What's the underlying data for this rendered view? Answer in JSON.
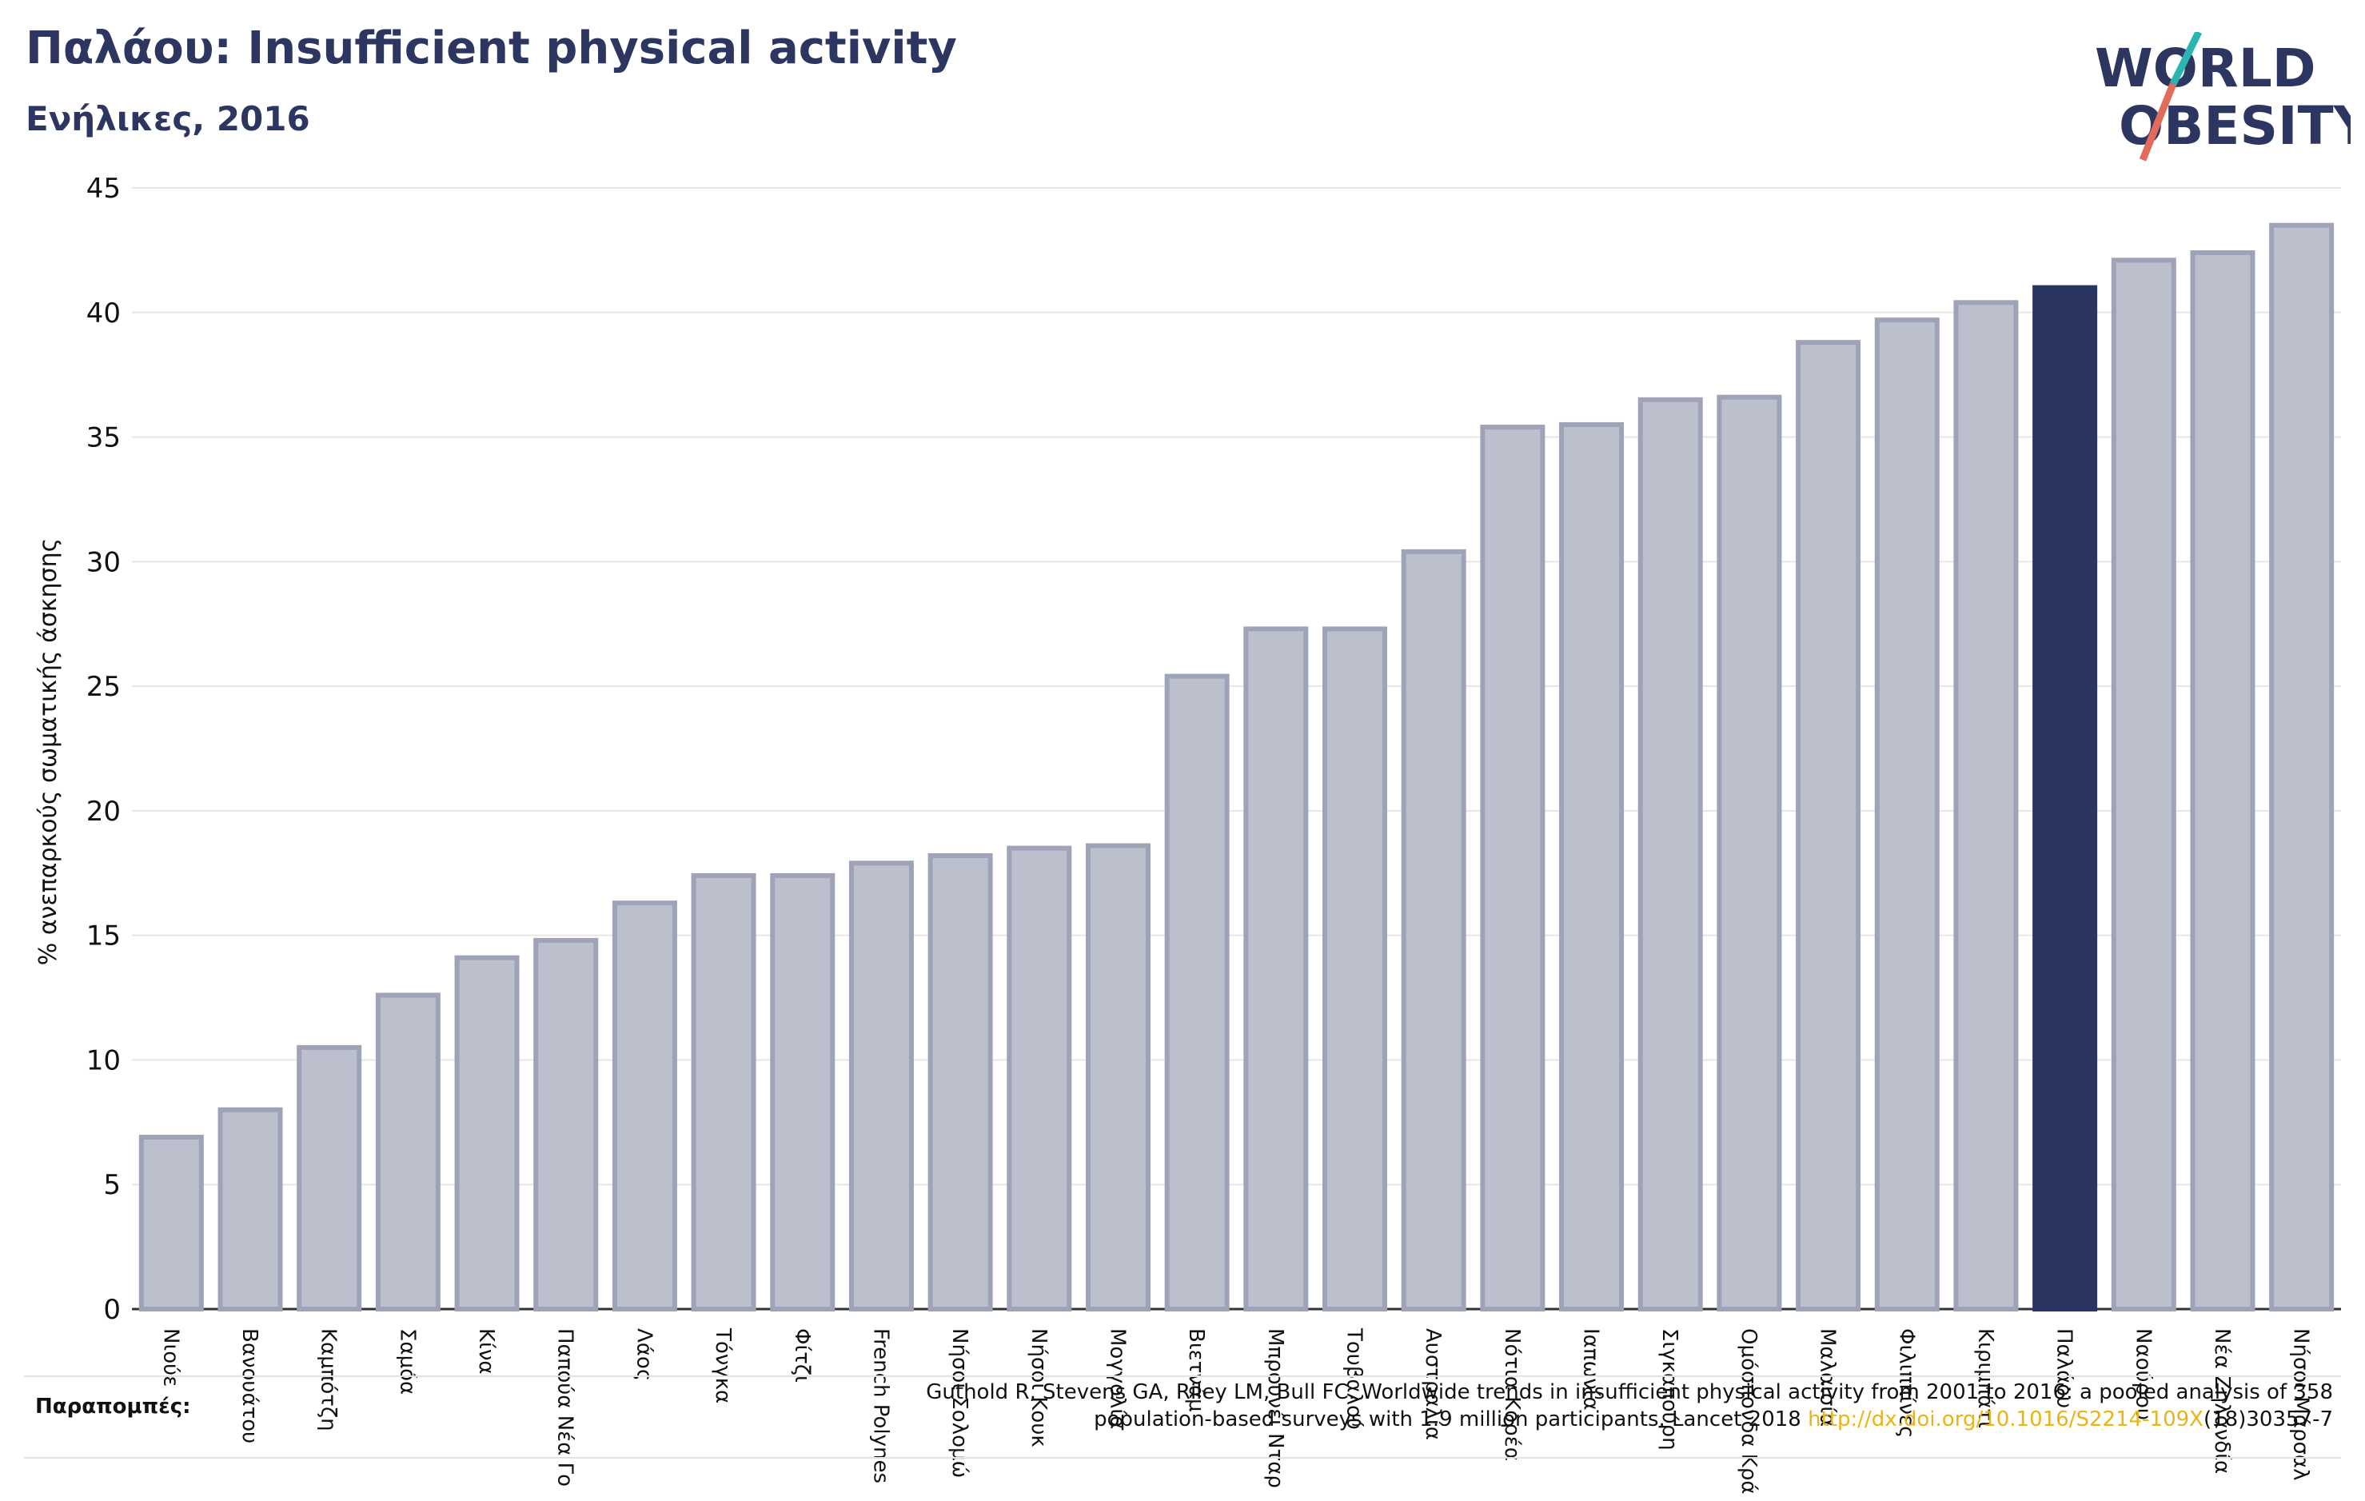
{
  "header": {
    "title": "Παλάου: Insufficient physical activity",
    "subtitle": "Ενήλικες, 2016"
  },
  "logo": {
    "line1": "WORLD",
    "line2": "OBESITY"
  },
  "colors": {
    "bar": "#bcbfcc",
    "bar_stroke": "#9ea3b8",
    "highlight": "#2a3561",
    "text": "#2c3660"
  },
  "chart_data": {
    "type": "bar",
    "title": "Παλάου: Insufficient physical activity",
    "subtitle": "Ενήλικες, 2016",
    "ylabel": "% ανεπαρκούς σωματικής άσκησης",
    "xlabel": "",
    "ylim": [
      0,
      45
    ],
    "yticks": [
      0,
      5,
      10,
      15,
      20,
      25,
      30,
      35,
      40,
      45
    ],
    "grid": true,
    "highlight": "Παλάου",
    "categories": [
      "Νιούε",
      "Βανουάτου",
      "Καμπότζη",
      "Σαμόα",
      "Κίνα",
      "Παπούα Νέα Γουινέα",
      "Λάος",
      "Τόνγκα",
      "Φίτζι",
      "French Polynesia",
      "Νήσοι Σολομώντος",
      "Νήσοι Κουκ",
      "Μογγολία",
      "Βιετνάμ",
      "Μπρουνέι Νταρουσαλάμ",
      "Τουβαλού",
      "Αυστραλία",
      "Νότια Κορέα",
      "Ιαπωνία",
      "Σιγκαπούρη",
      "Ομόσπονδα Κράτη της Μικρονησίας",
      "Μαλαισία",
      "Φιλιππίνες",
      "Κιριμπάτι",
      "Παλάου",
      "Ναούρου",
      "Νέα Ζηλανδία",
      "Νήσοι Μάρσαλ"
    ],
    "tick_labels": [
      "Νιούε",
      "Βανουάτου",
      "Καμπότζη",
      "Σαμόα",
      "Κίνα",
      "Παπούα Νέα Γο",
      "Λάος",
      "Τόνγκα",
      "Φίτζι",
      "French Polynes",
      "Νήσοι Σολομώ",
      "Νήσοι Κουκ",
      "Μογγολία",
      "Βιετνάμ",
      "Μπρουνέι Νταρ",
      "Τουβαλού",
      "Αυστραλία",
      "Νότια Κορέα",
      "Ιαπωνία",
      "Σιγκαπούρη",
      "Ομόσπονδα Κρά",
      "Μαλαισία",
      "Φιλιππίνες",
      "Κιριμπάτι",
      "Παλάου",
      "Ναούρου",
      "Νέα Ζηλανδία",
      "Νήσοι Μάρσαλ"
    ],
    "values": [
      6.9,
      8.0,
      10.5,
      12.6,
      14.1,
      14.8,
      16.3,
      17.4,
      17.4,
      17.9,
      18.2,
      18.5,
      18.6,
      25.4,
      27.3,
      27.3,
      30.4,
      35.4,
      35.5,
      36.5,
      36.6,
      38.8,
      39.7,
      40.4,
      41.0,
      42.1,
      42.4,
      43.5
    ]
  },
  "references": {
    "label": "Παραπομπές:",
    "text_line1": "Guthold R, Stevens GA, Riley LM, Bull FC. Worldwide trends in insufficient physical activity from 2001 to 2016: a pooled analysis of 358",
    "text_line2_before": "population-based surveys with 1.9 million participants. Lancet 2018",
    "link": "http://dx.doi.org/10.1016/S2214-109X",
    "text_line2_after": "(18)30357-7"
  }
}
